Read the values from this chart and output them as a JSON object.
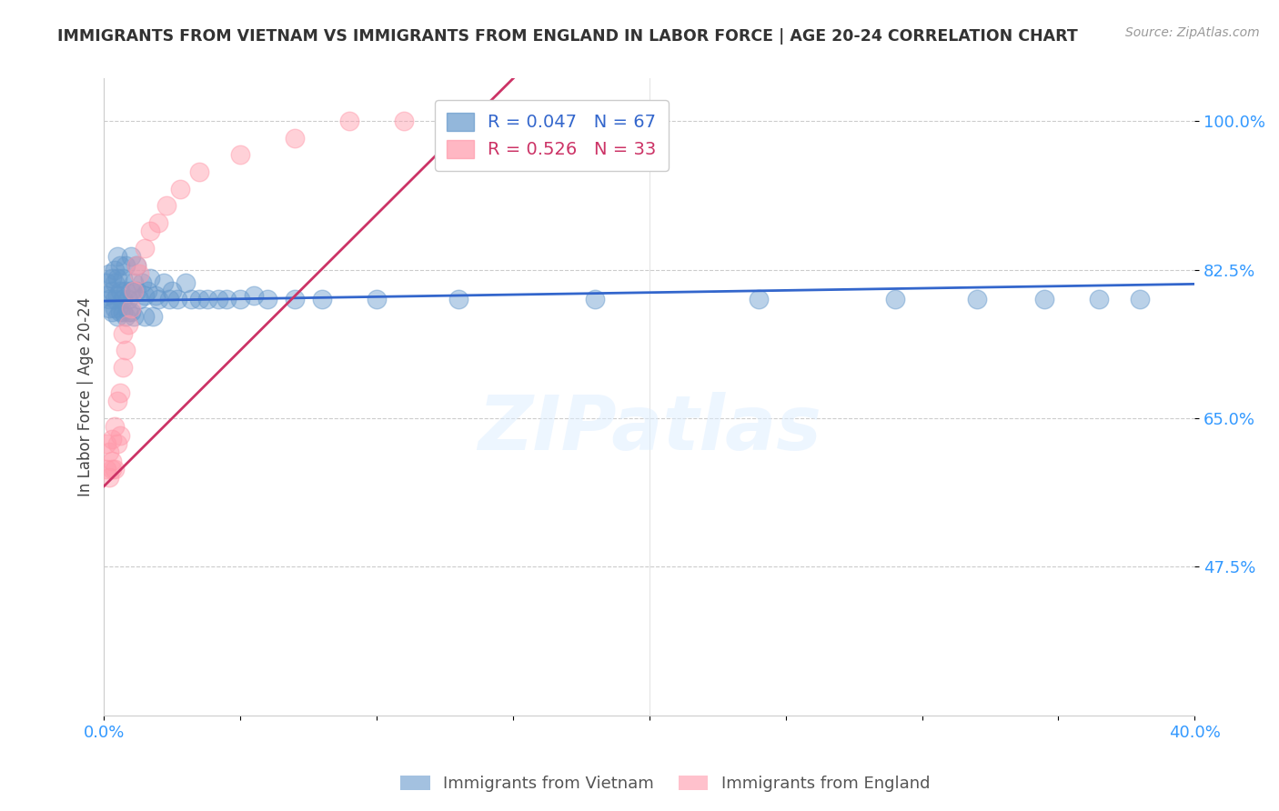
{
  "title": "IMMIGRANTS FROM VIETNAM VS IMMIGRANTS FROM ENGLAND IN LABOR FORCE | AGE 20-24 CORRELATION CHART",
  "source": "Source: ZipAtlas.com",
  "ylabel": "In Labor Force | Age 20-24",
  "xlim": [
    0.0,
    0.4
  ],
  "ylim": [
    0.3,
    1.05
  ],
  "yticks": [
    0.475,
    0.65,
    0.825,
    1.0
  ],
  "ytick_labels": [
    "47.5%",
    "65.0%",
    "82.5%",
    "100.0%"
  ],
  "xticks": [
    0.0,
    0.05,
    0.1,
    0.15,
    0.2,
    0.25,
    0.3,
    0.35,
    0.4
  ],
  "xtick_labels": [
    "0.0%",
    "",
    "",
    "",
    "",
    "",
    "",
    "",
    "40.0%"
  ],
  "vietnam_color": "#6699CC",
  "england_color": "#FF99AA",
  "trend_vietnam_color": "#3366CC",
  "trend_england_color": "#CC3366",
  "R_vietnam": 0.047,
  "N_vietnam": 67,
  "R_england": 0.526,
  "N_england": 33,
  "vietnam_x": [
    0.001,
    0.001,
    0.002,
    0.002,
    0.002,
    0.003,
    0.003,
    0.003,
    0.004,
    0.004,
    0.004,
    0.004,
    0.005,
    0.005,
    0.005,
    0.005,
    0.006,
    0.006,
    0.006,
    0.007,
    0.007,
    0.007,
    0.008,
    0.008,
    0.008,
    0.009,
    0.009,
    0.01,
    0.01,
    0.01,
    0.011,
    0.011,
    0.012,
    0.012,
    0.013,
    0.014,
    0.015,
    0.015,
    0.016,
    0.017,
    0.018,
    0.019,
    0.02,
    0.022,
    0.024,
    0.025,
    0.027,
    0.03,
    0.032,
    0.035,
    0.038,
    0.042,
    0.045,
    0.05,
    0.055,
    0.06,
    0.07,
    0.08,
    0.1,
    0.13,
    0.18,
    0.24,
    0.29,
    0.32,
    0.345,
    0.365,
    0.38
  ],
  "vietnam_y": [
    0.795,
    0.81,
    0.78,
    0.82,
    0.79,
    0.8,
    0.815,
    0.775,
    0.79,
    0.81,
    0.78,
    0.825,
    0.795,
    0.815,
    0.77,
    0.84,
    0.8,
    0.775,
    0.83,
    0.79,
    0.775,
    0.815,
    0.8,
    0.77,
    0.83,
    0.79,
    0.775,
    0.84,
    0.8,
    0.775,
    0.81,
    0.77,
    0.8,
    0.83,
    0.79,
    0.81,
    0.795,
    0.77,
    0.8,
    0.815,
    0.77,
    0.795,
    0.79,
    0.81,
    0.79,
    0.8,
    0.79,
    0.81,
    0.79,
    0.79,
    0.79,
    0.79,
    0.79,
    0.79,
    0.795,
    0.79,
    0.79,
    0.79,
    0.79,
    0.79,
    0.79,
    0.79,
    0.79,
    0.79,
    0.79,
    0.79,
    0.79
  ],
  "england_x": [
    0.001,
    0.001,
    0.002,
    0.002,
    0.003,
    0.003,
    0.003,
    0.004,
    0.004,
    0.005,
    0.005,
    0.006,
    0.006,
    0.007,
    0.007,
    0.008,
    0.009,
    0.01,
    0.011,
    0.012,
    0.013,
    0.015,
    0.017,
    0.02,
    0.023,
    0.028,
    0.035,
    0.05,
    0.07,
    0.09,
    0.11,
    0.14,
    0.18
  ],
  "england_y": [
    0.59,
    0.62,
    0.58,
    0.61,
    0.6,
    0.59,
    0.625,
    0.59,
    0.64,
    0.62,
    0.67,
    0.68,
    0.63,
    0.71,
    0.75,
    0.73,
    0.76,
    0.78,
    0.8,
    0.83,
    0.82,
    0.85,
    0.87,
    0.88,
    0.9,
    0.92,
    0.94,
    0.96,
    0.98,
    1.0,
    1.0,
    1.0,
    1.0
  ],
  "watermark": "ZIPatlas",
  "background_color": "#FFFFFF",
  "grid_color": "#CCCCCC",
  "title_color": "#333333",
  "axis_color": "#3399FF",
  "marker_size": 220
}
